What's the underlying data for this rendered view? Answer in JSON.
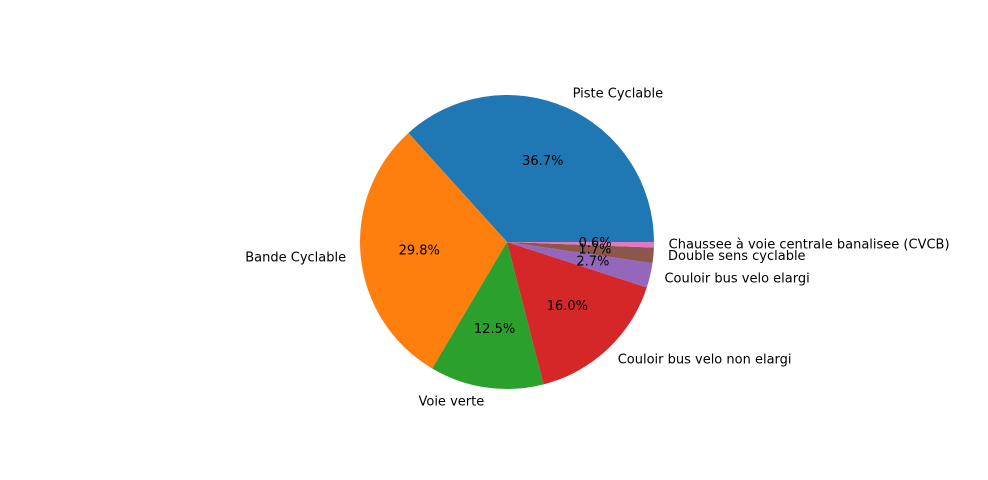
{
  "chart_data": {
    "type": "pie",
    "title": "",
    "categories": [
      "Piste Cyclable",
      "Bande Cyclable",
      "Voie verte",
      "Couloir bus velo non elargi",
      "Couloir bus velo elargi",
      "Double sens cyclable",
      "Chaussee à voie centrale banalisee (CVCB)"
    ],
    "values": [
      36.7,
      29.8,
      12.5,
      16.0,
      2.7,
      1.7,
      0.6
    ],
    "pct_labels": [
      "36.7%",
      "29.8%",
      "12.5%",
      "16.0%",
      "2.7%",
      "1.7%",
      "0.6%"
    ],
    "colors": [
      "#1f77b4",
      "#ff7f0e",
      "#2ca02c",
      "#d62728",
      "#9467bd",
      "#8c564b",
      "#e377c2"
    ],
    "start_angle": 0,
    "direction": "counterclockwise",
    "legend": "none"
  }
}
